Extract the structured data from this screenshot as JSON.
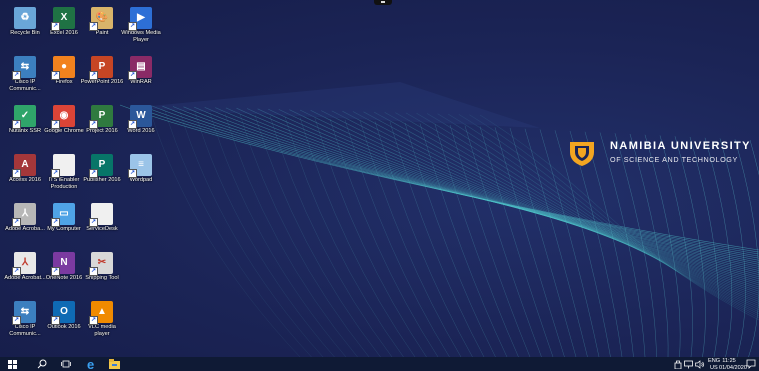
{
  "desktop": {
    "icons": [
      {
        "label": "Recycle Bin",
        "icon": "recycle-bin-icon",
        "color": "#6aa6d8",
        "glyph": "♻"
      },
      {
        "label": "Excel 2016",
        "icon": "excel-icon",
        "color": "#1f7244",
        "glyph": "X"
      },
      {
        "label": "Paint",
        "icon": "paint-icon",
        "color": "#d9b46a",
        "glyph": "🎨"
      },
      {
        "label": "Windows Media Player",
        "icon": "media-player-icon",
        "color": "#2d6fd6",
        "glyph": "▶"
      },
      {
        "label": "Cisco IP Communic...",
        "icon": "cisco-icon",
        "color": "#3c7fbf",
        "glyph": "⇆"
      },
      {
        "label": "Firefox",
        "icon": "firefox-icon",
        "color": "#f2821e",
        "glyph": "●"
      },
      {
        "label": "PowerPoint 2016",
        "icon": "powerpoint-icon",
        "color": "#c64524",
        "glyph": "P"
      },
      {
        "label": "WinRAR",
        "icon": "winrar-icon",
        "color": "#8a2a66",
        "glyph": "▤"
      },
      {
        "label": "Nutanix SSR",
        "icon": "nutanix-icon",
        "color": "#2fa56a",
        "glyph": "✓"
      },
      {
        "label": "Google Chrome",
        "icon": "chrome-icon",
        "color": "#db4437",
        "glyph": "◉"
      },
      {
        "label": "Project 2016",
        "icon": "project-icon",
        "color": "#2f7a3f",
        "glyph": "P"
      },
      {
        "label": "Word 2016",
        "icon": "word-icon",
        "color": "#2b579a",
        "glyph": "W"
      },
      {
        "label": "Access 2016",
        "icon": "access-icon",
        "color": "#a4373a",
        "glyph": "A"
      },
      {
        "label": "ITS iEnabler Production",
        "icon": "document-icon",
        "color": "#f0f0f0",
        "glyph": ""
      },
      {
        "label": "Publisher 2016",
        "icon": "publisher-icon",
        "color": "#077568",
        "glyph": "P"
      },
      {
        "label": "Wordpad",
        "icon": "wordpad-icon",
        "color": "#9bc4e8",
        "glyph": "≡"
      },
      {
        "label": "Adobe Acroba...",
        "icon": "acrobat-reader-icon",
        "color": "#b7b7b7",
        "glyph": "⅄"
      },
      {
        "label": "My Computer",
        "icon": "computer-icon",
        "color": "#4fa3e6",
        "glyph": "▭"
      },
      {
        "label": "ServiceDesk",
        "icon": "document-icon",
        "color": "#f0f0f0",
        "glyph": ""
      },
      {
        "label": "Adobe Acrobat...",
        "icon": "acrobat-icon",
        "color": "#e8e8e8",
        "glyph": "⅄"
      },
      {
        "label": "OneNote 2016",
        "icon": "onenote-icon",
        "color": "#7b3aa0",
        "glyph": "N"
      },
      {
        "label": "Snipping Tool",
        "icon": "snipping-tool-icon",
        "color": "#d8d8d8",
        "glyph": "✂"
      },
      {
        "label": "Cisco IP Communic...",
        "icon": "cisco-icon",
        "color": "#3c7fbf",
        "glyph": "⇆"
      },
      {
        "label": "Outlook 2016",
        "icon": "outlook-icon",
        "color": "#0f6ab4",
        "glyph": "O"
      },
      {
        "label": "VLC media player",
        "icon": "vlc-icon",
        "color": "#f08a00",
        "glyph": "▲"
      }
    ]
  },
  "branding": {
    "line1": "NAMIBIA UNIVERSITY",
    "line2": "OF SCIENCE AND TECHNOLOGY",
    "accent": "#f3a521"
  },
  "taskbar": {
    "background": "#0f1a35",
    "language": "ENG",
    "time": "11:25",
    "region": "US",
    "date": "01/04/2020"
  }
}
